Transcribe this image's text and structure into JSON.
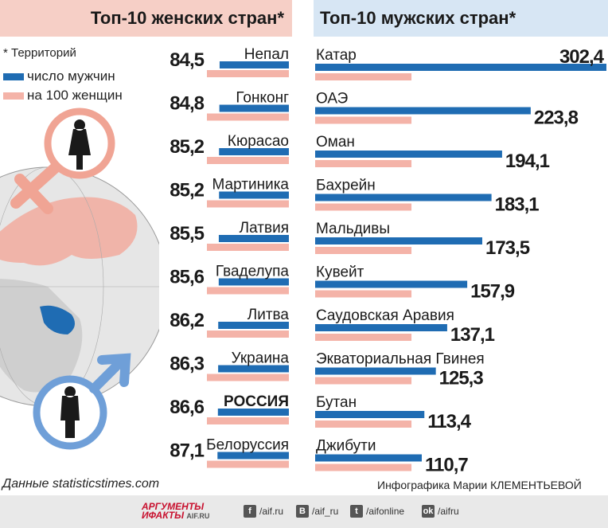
{
  "header": {
    "female_title": "Топ-10 женских стран*",
    "male_title": "Топ-10 мужских стран*"
  },
  "legend": {
    "note": "* Территорий",
    "male_label": "число мужчин",
    "female_label": "на 100 женщин",
    "male_color": "#1f6cb3",
    "female_color": "#f4b3a8"
  },
  "footer": {
    "source": "Данные statisticstimes.com",
    "credit": "Инфографика Марии КЛЕМЕНТЬЕВОЙ",
    "logo_line1": "АРГУМЕНТЫ",
    "logo_line2": "ИФАКТЫ",
    "logo_url": "AIF.RU",
    "social": [
      {
        "icon": "f",
        "label": "/aif.ru"
      },
      {
        "icon": "B",
        "label": "/aif_ru"
      },
      {
        "icon": "t",
        "label": "/aifonline"
      },
      {
        "icon": "ok",
        "label": "/aifru"
      }
    ]
  },
  "chart_data": [
    {
      "type": "bar",
      "orientation": "horizontal",
      "title": "Топ-10 женских стран*",
      "categories": [
        "Непал",
        "Гонконг",
        "Кюрасао",
        "Мартиника",
        "Латвия",
        "Гваделупа",
        "Литва",
        "Украина",
        "РОССИЯ",
        "Белоруссия"
      ],
      "values": [
        84.5,
        84.8,
        85.2,
        85.2,
        85.5,
        85.6,
        86.2,
        86.3,
        86.6,
        87.1
      ],
      "value_labels": [
        "84,5",
        "84,8",
        "85,2",
        "85,2",
        "85,5",
        "85,6",
        "86,2",
        "86,3",
        "86,6",
        "87,1"
      ],
      "reference": 100,
      "highlight": "РОССИЯ"
    },
    {
      "type": "bar",
      "orientation": "horizontal",
      "title": "Топ-10 мужских стран*",
      "categories": [
        "Катар",
        "ОАЭ",
        "Оман",
        "Бахрейн",
        "Мальдивы",
        "Кувейт",
        "Саудовская Аравия",
        "Экваториальная Гвинея",
        "Бутан",
        "Джибути"
      ],
      "values": [
        302.4,
        223.8,
        194.1,
        183.1,
        173.5,
        157.9,
        137.1,
        125.3,
        113.4,
        110.7
      ],
      "value_labels": [
        "302,4",
        "223,8",
        "194,1",
        "183,1",
        "173,5",
        "157,9",
        "137,1",
        "125,3",
        "113,4",
        "110,7"
      ],
      "reference": 100
    }
  ]
}
